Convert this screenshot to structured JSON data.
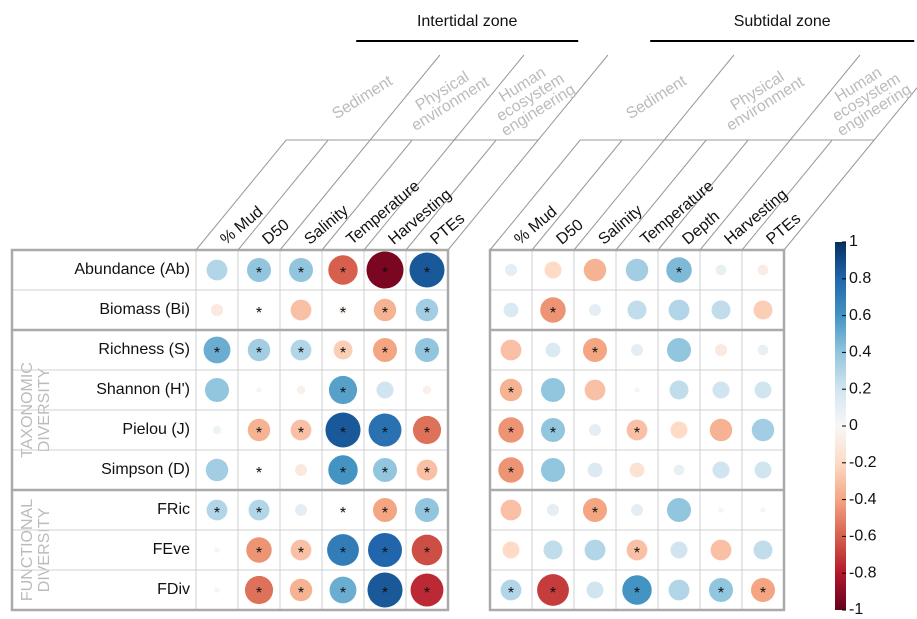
{
  "chart_data": {
    "type": "corrplot",
    "panels": [
      {
        "title": "Intertidal zone",
        "groups": [
          {
            "label": [
              "Sediment"
            ],
            "columns": [
              "% Mud",
              "D50"
            ]
          },
          {
            "label": [
              "Physical",
              "environment"
            ],
            "columns": [
              "Salinity",
              "Temperature"
            ]
          },
          {
            "label": [
              "Human",
              "ecosystem",
              "engineering"
            ],
            "columns": [
              "Harvesting",
              "PTEs"
            ]
          }
        ],
        "values": [
          [
            0.3,
            0.4,
            0.4,
            -0.6,
            -0.95,
            0.85
          ],
          [
            -0.1,
            0.02,
            -0.3,
            -0.05,
            -0.35,
            0.35
          ],
          [
            0.5,
            0.35,
            0.3,
            -0.25,
            -0.4,
            0.4
          ],
          [
            0.4,
            0.02,
            -0.05,
            0.55,
            0.2,
            -0.05
          ],
          [
            0.05,
            -0.35,
            -0.3,
            0.85,
            0.75,
            -0.55
          ],
          [
            0.35,
            0.02,
            -0.1,
            0.6,
            0.4,
            -0.3
          ],
          [
            0.3,
            0.3,
            0.1,
            0.02,
            -0.4,
            0.4
          ],
          [
            0.02,
            -0.45,
            -0.3,
            0.7,
            0.8,
            -0.65
          ],
          [
            0.02,
            -0.55,
            -0.35,
            0.5,
            0.85,
            -0.75
          ]
        ],
        "labels": [
          [
            null,
            "*",
            "*",
            "*",
            "*",
            "*"
          ],
          [
            null,
            "*",
            null,
            "*",
            "*",
            "*"
          ],
          [
            "*",
            "*",
            "*",
            "*",
            "*",
            "*"
          ],
          [
            null,
            null,
            null,
            "*",
            null,
            null
          ],
          [
            null,
            "*",
            "*",
            "*",
            "*",
            "*"
          ],
          [
            null,
            "*",
            null,
            "*",
            "*",
            "*"
          ],
          [
            "*",
            "*",
            null,
            "*",
            "*",
            "*"
          ],
          [
            null,
            "*",
            "*",
            "*",
            "*",
            "*"
          ],
          [
            null,
            "*",
            "*",
            "*",
            "*",
            "*"
          ]
        ]
      },
      {
        "title": "Subtidal zone",
        "groups": [
          {
            "label": [
              "Sediment"
            ],
            "columns": [
              "% Mud",
              "D50"
            ]
          },
          {
            "label": [
              "Physical",
              "environment"
            ],
            "columns": [
              "Salinity",
              "Temperature",
              "Depth"
            ]
          },
          {
            "label": [
              "Human",
              "ecosystem",
              "engineering"
            ],
            "columns": [
              "Harvesting",
              "PTEs"
            ]
          }
        ],
        "values": [
          [
            0.1,
            -0.2,
            -0.35,
            0.35,
            0.45,
            0.08,
            -0.08
          ],
          [
            0.15,
            -0.45,
            0.1,
            0.25,
            0.3,
            0.25,
            -0.25
          ],
          [
            -0.3,
            0.15,
            -0.4,
            0.1,
            0.4,
            -0.1,
            0.08
          ],
          [
            -0.35,
            0.4,
            -0.3,
            0.02,
            0.25,
            0.2,
            0.2
          ],
          [
            -0.45,
            0.4,
            0.1,
            -0.3,
            -0.2,
            -0.35,
            0.35
          ],
          [
            -0.45,
            0.4,
            0.15,
            -0.15,
            0.08,
            0.2,
            0.2
          ],
          [
            -0.3,
            0.1,
            -0.4,
            0.1,
            0.4,
            0.02,
            0.02
          ],
          [
            -0.2,
            0.25,
            0.3,
            -0.3,
            0.2,
            -0.3,
            0.25
          ],
          [
            0.3,
            -0.7,
            0.2,
            0.6,
            0.3,
            0.4,
            -0.4
          ]
        ],
        "labels": [
          [
            null,
            null,
            null,
            null,
            "*",
            null,
            null
          ],
          [
            null,
            "*",
            null,
            null,
            null,
            null,
            null
          ],
          [
            null,
            null,
            "*",
            null,
            null,
            null,
            null
          ],
          [
            "*",
            null,
            null,
            null,
            null,
            null,
            null
          ],
          [
            "*",
            "*",
            null,
            "*",
            null,
            null,
            null
          ],
          [
            "*",
            null,
            null,
            null,
            null,
            null,
            null
          ],
          [
            null,
            null,
            "*",
            null,
            null,
            null,
            null
          ],
          [
            null,
            null,
            null,
            "*",
            null,
            null,
            null
          ],
          [
            "*",
            "*",
            null,
            "*",
            null,
            "*",
            "*"
          ]
        ]
      }
    ],
    "row_groups": [
      {
        "label": null,
        "rows": [
          "Abundance (Ab)",
          "Biomass (Bi)"
        ]
      },
      {
        "label": [
          "TAXONOMIC",
          "DIVERSITY"
        ],
        "rows": [
          "Richness (S)",
          "Shannon (H')",
          "Pielou (J)",
          "Simpson (D)"
        ]
      },
      {
        "label": [
          "FUNCTIONAL",
          "DIVERSITY"
        ],
        "rows": [
          "FRic",
          "FEve",
          "FDiv"
        ]
      }
    ],
    "colorbar": {
      "lim": [
        -1,
        1
      ],
      "ticks": [
        1,
        0.8,
        0.6,
        0.4,
        0.2,
        0,
        -0.2,
        -0.4,
        -0.6,
        -0.8,
        -1
      ]
    },
    "colors": [
      "#67001f",
      "#b2182b",
      "#d6604d",
      "#f4a582",
      "#fddbc7",
      "#f7f7f7",
      "#d1e5f0",
      "#92c5de",
      "#4393c3",
      "#2166ac",
      "#053061"
    ]
  }
}
